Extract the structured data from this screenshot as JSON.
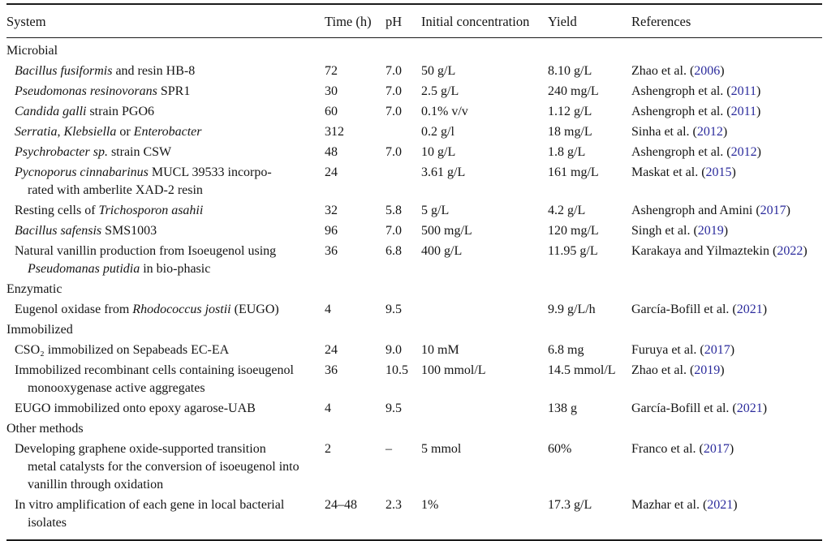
{
  "page": {
    "background": "#ffffff",
    "text_color": "#151515",
    "rule_color": "#1b1b1b",
    "citation_year_color": "#2b2b9c"
  },
  "table": {
    "columns": [
      "System",
      "Time (h)",
      "pH",
      "Initial concentration",
      "Yield",
      "References"
    ],
    "sections": [
      {
        "title": "Microbial",
        "rows": [
          {
            "system": [
              {
                "t": "Bacillus fusiformis",
                "i": true
              },
              {
                "t": " and resin HB-8"
              }
            ],
            "time": "72",
            "ph": "7.0",
            "initial_concentration": "50 g/L",
            "yield": "8.10 g/L",
            "reference": {
              "text": "Zhao et al.",
              "year": "2006"
            }
          },
          {
            "system": [
              {
                "t": "Pseudomonas resinovorans",
                "i": true
              },
              {
                "t": " SPR1"
              }
            ],
            "time": "30",
            "ph": "7.0",
            "initial_concentration": "2.5 g/L",
            "yield": "240 mg/L",
            "reference": {
              "text": "Ashengroph et al.",
              "year": "2011"
            }
          },
          {
            "system": [
              {
                "t": "Candida galli",
                "i": true
              },
              {
                "t": " strain PGO6"
              }
            ],
            "time": "60",
            "ph": "7.0",
            "initial_concentration": "0.1% v/v",
            "yield": "1.12 g/L",
            "reference": {
              "text": "Ashengroph et al.",
              "year": "2011"
            }
          },
          {
            "system": [
              {
                "t": "Serratia",
                "i": true
              },
              {
                "t": ", "
              },
              {
                "t": "Klebsiella",
                "i": true
              },
              {
                "t": " or "
              },
              {
                "t": "Enterobacter",
                "i": true
              }
            ],
            "time": "312",
            "ph": "",
            "initial_concentration": "0.2 g/l",
            "yield": "18 mg/L",
            "reference": {
              "text": "Sinha et al.",
              "year": "2012"
            }
          },
          {
            "system": [
              {
                "t": "Psychrobacter sp.",
                "i": true
              },
              {
                "t": " strain CSW"
              }
            ],
            "time": "48",
            "ph": "7.0",
            "initial_concentration": "10 g/L",
            "yield": "1.8 g/L",
            "reference": {
              "text": "Ashengroph et al.",
              "year": "2012"
            }
          },
          {
            "system": [
              {
                "t": "Pycnoporus cinnabarinus",
                "i": true
              },
              {
                "t": " MUCL 39533 incorpo-"
              },
              {
                "br": true
              },
              {
                "t": "rated with amberlite XAD-2 resin"
              }
            ],
            "time": "24",
            "ph": "",
            "initial_concentration": "3.61 g/L",
            "yield": "161 mg/L",
            "reference": {
              "text": "Maskat et al.",
              "year": "2015"
            }
          },
          {
            "system": [
              {
                "t": "Resting cells of "
              },
              {
                "t": "Trichosporon asahii",
                "i": true
              }
            ],
            "time": "32",
            "ph": "5.8",
            "initial_concentration": "5 g/L",
            "yield": "4.2 g/L",
            "reference": {
              "text": "Ashengroph and Amini",
              "year": "2017"
            }
          },
          {
            "system": [
              {
                "t": "Bacillus safensis",
                "i": true
              },
              {
                "t": " SMS1003"
              }
            ],
            "time": "96",
            "ph": "7.0",
            "initial_concentration": "500 mg/L",
            "yield": "120 mg/L",
            "reference": {
              "text": "Singh et al.",
              "year": "2019"
            }
          },
          {
            "system": [
              {
                "t": "Natural vanillin production from Isoeugenol using"
              },
              {
                "br": true
              },
              {
                "t": "Pseudomanas putidia",
                "i": true
              },
              {
                "t": " in bio-phasic"
              }
            ],
            "time": "36",
            "ph": "6.8",
            "initial_concentration": "400 g/L",
            "yield": "11.95 g/L",
            "reference": {
              "text": "Karakaya and Yilmaztekin",
              "year": "2022"
            }
          }
        ]
      },
      {
        "title": "Enzymatic",
        "rows": [
          {
            "system": [
              {
                "t": "Eugenol oxidase from "
              },
              {
                "t": "Rhodococcus jostii",
                "i": true
              },
              {
                "t": " (EUGO)"
              }
            ],
            "time": "4",
            "ph": "9.5",
            "initial_concentration": "",
            "yield": "9.9 g/L/h",
            "reference": {
              "text": "García-Bofill et al.",
              "year": "2021"
            }
          }
        ]
      },
      {
        "title": "Immobilized",
        "rows": [
          {
            "system": [
              {
                "t": "CSO₂ immobilized on Sepabeads EC-EA"
              }
            ],
            "time": "24",
            "ph": "9.0",
            "initial_concentration": "10 mM",
            "yield": "6.8 mg",
            "reference": {
              "text": "Furuya et al.",
              "year": "2017"
            }
          },
          {
            "system": [
              {
                "t": "Immobilized recombinant cells containing isoeugenol"
              },
              {
                "br": true
              },
              {
                "t": "monooxygenase active aggregates"
              }
            ],
            "time": "36",
            "ph": "10.5",
            "initial_concentration": "100 mmol/L",
            "yield": "14.5 mmol/L",
            "reference": {
              "text": "Zhao et al.",
              "year": "2019"
            }
          },
          {
            "system": [
              {
                "t": "EUGO immobilized onto epoxy agarose-UAB"
              }
            ],
            "time": "4",
            "ph": "9.5",
            "initial_concentration": "",
            "yield": "138 g",
            "reference": {
              "text": "García-Bofill et al.",
              "year": "2021"
            }
          }
        ]
      },
      {
        "title": "Other methods",
        "rows": [
          {
            "system": [
              {
                "t": "Developing graphene oxide-supported transition"
              },
              {
                "br": true
              },
              {
                "t": "metal catalysts for the conversion of isoeugenol into"
              },
              {
                "br": true
              },
              {
                "t": "vanillin through oxidation"
              }
            ],
            "time": "2",
            "ph": "–",
            "initial_concentration": "5 mmol",
            "yield": "60%",
            "reference": {
              "text": "Franco et al.",
              "year": "2017"
            }
          },
          {
            "system": [
              {
                "t": "In vitro amplification of each gene in local bacterial"
              },
              {
                "br": true
              },
              {
                "t": "isolates"
              }
            ],
            "time": "24–48",
            "ph": "2.3",
            "initial_concentration": "1%",
            "yield": "17.3 g/L",
            "reference": {
              "text": "Mazhar et al.",
              "year": "2021"
            }
          }
        ]
      }
    ]
  }
}
